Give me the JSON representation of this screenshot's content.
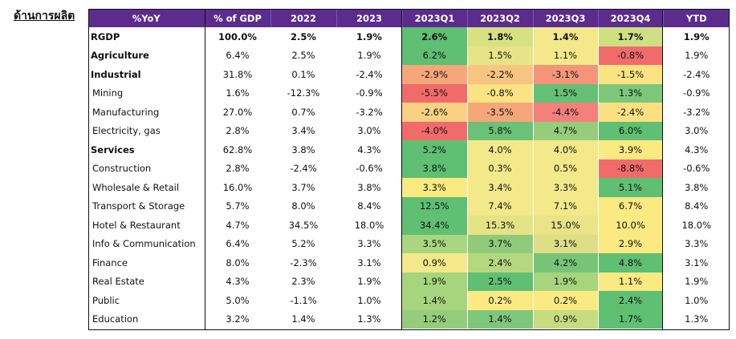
{
  "section_title": "ด้านการผลิต",
  "headers": [
    "%YoY",
    "% of GDP",
    "2022",
    "2023",
    "2023Q1",
    "2023Q2",
    "2023Q3",
    "2023Q4",
    "YTD"
  ],
  "rows": [
    {
      "label": "RGDP",
      "type": "main",
      "gdp": "100.0%",
      "y2022": "2.5%",
      "y2023": "1.9%",
      "q": [
        "2.6%",
        "1.8%",
        "1.4%",
        "1.7%"
      ],
      "qc": [
        "#5fbf72",
        "#d7e182",
        "#f3e88a",
        "#cfdf82"
      ],
      "ytd": "1.9%"
    },
    {
      "label": "Agriculture",
      "type": "main",
      "gdp": "6.4%",
      "y2022": "2.5%",
      "y2023": "1.9%",
      "q": [
        "6.2%",
        "1.5%",
        "1.1%",
        "-0.8%"
      ],
      "qc": [
        "#5fbf72",
        "#e6e486",
        "#f5e88a",
        "#f26b6b"
      ],
      "ytd": "1.9%"
    },
    {
      "label": "Industrial",
      "type": "main",
      "gdp": "31.8%",
      "y2022": "0.1%",
      "y2023": "-2.4%",
      "q": [
        "-2.9%",
        "-2.2%",
        "-3.1%",
        "-1.5%"
      ],
      "qc": [
        "#f6a77a",
        "#f8c481",
        "#f4957a",
        "#fbe382"
      ],
      "ytd": "-2.4%"
    },
    {
      "label": "Mining",
      "type": "sub",
      "gdp": "1.6%",
      "y2022": "-12.3%",
      "y2023": "-0.9%",
      "q": [
        "-5.5%",
        "-0.8%",
        "1.5%",
        "1.3%"
      ],
      "qc": [
        "#f26b6b",
        "#fbe283",
        "#63c074",
        "#7dc77a"
      ],
      "ytd": "-0.9%"
    },
    {
      "label": "Manufacturing",
      "type": "sub",
      "gdp": "27.0%",
      "y2022": "0.7%",
      "y2023": "-3.2%",
      "q": [
        "-2.6%",
        "-3.5%",
        "-4.4%",
        "-2.4%"
      ],
      "qc": [
        "#fad082",
        "#f6a77a",
        "#f3807a",
        "#fbe082"
      ],
      "ytd": "-3.2%"
    },
    {
      "label": "Electricity, gas",
      "type": "sub",
      "gdp": "2.8%",
      "y2022": "3.4%",
      "y2023": "3.0%",
      "q": [
        "-4.0%",
        "5.8%",
        "4.7%",
        "6.0%"
      ],
      "qc": [
        "#f26b6b",
        "#6bc276",
        "#96cd7c",
        "#5fbf72"
      ],
      "ytd": "3.0%"
    },
    {
      "label": "Services",
      "type": "main",
      "gdp": "62.8%",
      "y2022": "3.8%",
      "y2023": "4.3%",
      "q": [
        "5.2%",
        "4.0%",
        "4.0%",
        "3.9%"
      ],
      "qc": [
        "#5fbf72",
        "#f3e88a",
        "#f3e88a",
        "#fbe982"
      ],
      "ytd": "4.3%"
    },
    {
      "label": "Construction",
      "type": "sub",
      "gdp": "2.8%",
      "y2022": "-2.4%",
      "y2023": "-0.6%",
      "q": [
        "3.8%",
        "0.3%",
        "0.5%",
        "-8.8%"
      ],
      "qc": [
        "#5fbf72",
        "#f3e88a",
        "#f3e88a",
        "#f26b6b"
      ],
      "ytd": "-0.6%"
    },
    {
      "label": "Wholesale & Retail",
      "type": "sub",
      "gdp": "16.0%",
      "y2022": "3.7%",
      "y2023": "3.8%",
      "q": [
        "3.3%",
        "3.4%",
        "3.3%",
        "5.1%"
      ],
      "qc": [
        "#fbe982",
        "#f3e88a",
        "#f3e88a",
        "#5fbf72"
      ],
      "ytd": "3.8%"
    },
    {
      "label": "Transport & Storage",
      "type": "sub",
      "gdp": "5.7%",
      "y2022": "8.0%",
      "y2023": "8.4%",
      "q": [
        "12.5%",
        "7.4%",
        "7.1%",
        "6.7%"
      ],
      "qc": [
        "#5fbf72",
        "#f3e88a",
        "#f3e88a",
        "#fbe982"
      ],
      "ytd": "8.4%"
    },
    {
      "label": "Hotel & Restaurant",
      "type": "sub",
      "gdp": "4.7%",
      "y2022": "34.5%",
      "y2023": "18.0%",
      "q": [
        "34.4%",
        "15.3%",
        "15.0%",
        "10.0%"
      ],
      "qc": [
        "#5fbf72",
        "#e4e386",
        "#e8e487",
        "#fbe982"
      ],
      "ytd": "18.0%"
    },
    {
      "label": "Info & Communication",
      "type": "sub",
      "gdp": "6.4%",
      "y2022": "5.2%",
      "y2023": "3.3%",
      "q": [
        "3.5%",
        "3.7%",
        "3.1%",
        "2.9%"
      ],
      "qc": [
        "#a9d67e",
        "#8fcb7b",
        "#ddde85",
        "#fbe982"
      ],
      "ytd": "3.3%"
    },
    {
      "label": "Finance",
      "type": "sub",
      "gdp": "8.0%",
      "y2022": "-2.3%",
      "y2023": "3.1%",
      "q": [
        "0.9%",
        "2.4%",
        "4.2%",
        "4.8%"
      ],
      "qc": [
        "#f3e88a",
        "#b5d87f",
        "#77c477",
        "#5fbf72"
      ],
      "ytd": "3.1%"
    },
    {
      "label": "Real Estate",
      "type": "sub",
      "gdp": "4.3%",
      "y2022": "2.3%",
      "y2023": "1.9%",
      "q": [
        "1.9%",
        "2.5%",
        "1.9%",
        "1.1%"
      ],
      "qc": [
        "#a6d57e",
        "#5fbf72",
        "#a6d57e",
        "#fbe982"
      ],
      "ytd": "1.9%"
    },
    {
      "label": "Public",
      "type": "sub",
      "gdp": "5.0%",
      "y2022": "-1.1%",
      "y2023": "1.0%",
      "q": [
        "1.4%",
        "0.2%",
        "0.2%",
        "2.4%"
      ],
      "qc": [
        "#a6d57e",
        "#fbe982",
        "#fbe982",
        "#5fbf72"
      ],
      "ytd": "1.0%"
    },
    {
      "label": "Education",
      "type": "sub",
      "gdp": "3.2%",
      "y2022": "1.4%",
      "y2023": "1.3%",
      "q": [
        "1.2%",
        "1.4%",
        "0.9%",
        "1.7%"
      ],
      "qc": [
        "#95cd7c",
        "#7ec77a",
        "#c7dc81",
        "#5fbf72"
      ],
      "ytd": "1.3%"
    }
  ]
}
